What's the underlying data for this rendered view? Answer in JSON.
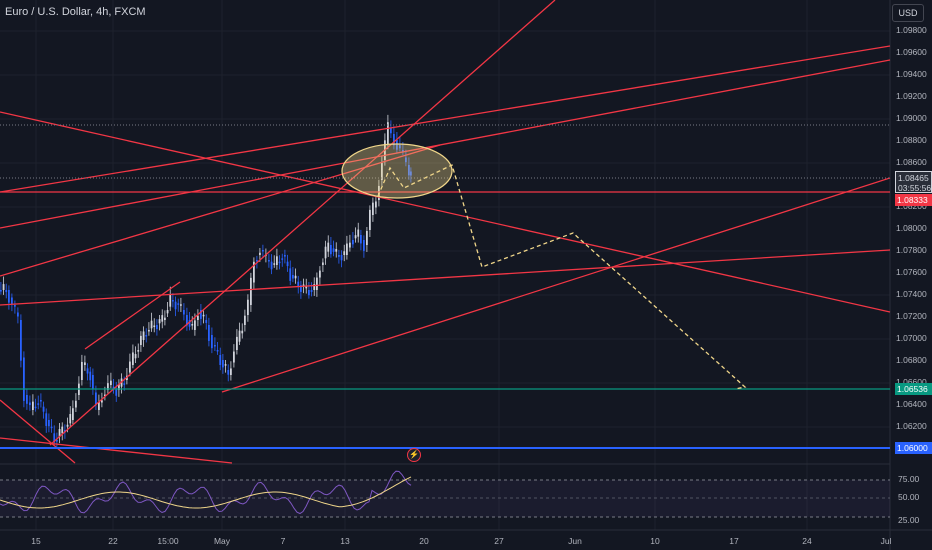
{
  "header": {
    "title": "Euro / U.S. Dollar, 4h, FXCM",
    "currency": "USD"
  },
  "price_axis": {
    "labels": [
      "1.09800",
      "1.09600",
      "1.09400",
      "1.09200",
      "1.09000",
      "1.08800",
      "1.08600",
      "1.08200",
      "1.08000",
      "1.07800",
      "1.07600",
      "1.07400",
      "1.07200",
      "1.07000",
      "1.06800",
      "1.06600",
      "1.06400",
      "1.06200"
    ],
    "last_price": "1.08465",
    "countdown": "03:55:56",
    "resistance_tag": "1.08333",
    "support_tag": "1.06536",
    "level_tag": "1.06000"
  },
  "time_axis": {
    "labels": [
      "15",
      "22",
      "15:00",
      "May",
      "7",
      "13",
      "20",
      "27",
      "Jun",
      "10",
      "17",
      "24",
      "Jul"
    ]
  },
  "rsi_axis": {
    "labels": [
      "75.00",
      "50.00",
      "25.00"
    ]
  },
  "colors": {
    "background": "#131722",
    "up": "#d1d4dc",
    "down": "#2962ff",
    "trendline": "#f23645",
    "projection": "#f0d68a",
    "support": "#089981",
    "level": "#2962ff",
    "rsi": "#7e57c2"
  },
  "chart_data": {
    "type": "candlestick",
    "symbol": "EURUSD",
    "timeframe": "4h",
    "ylim": [
      1.0597,
      1.0998
    ],
    "horizontal_levels": [
      1.06536,
      1.06,
      1.08333
    ],
    "last_price": 1.08465,
    "projection": [
      1.0855,
      1.0765,
      1.0795,
      1.0655
    ]
  }
}
